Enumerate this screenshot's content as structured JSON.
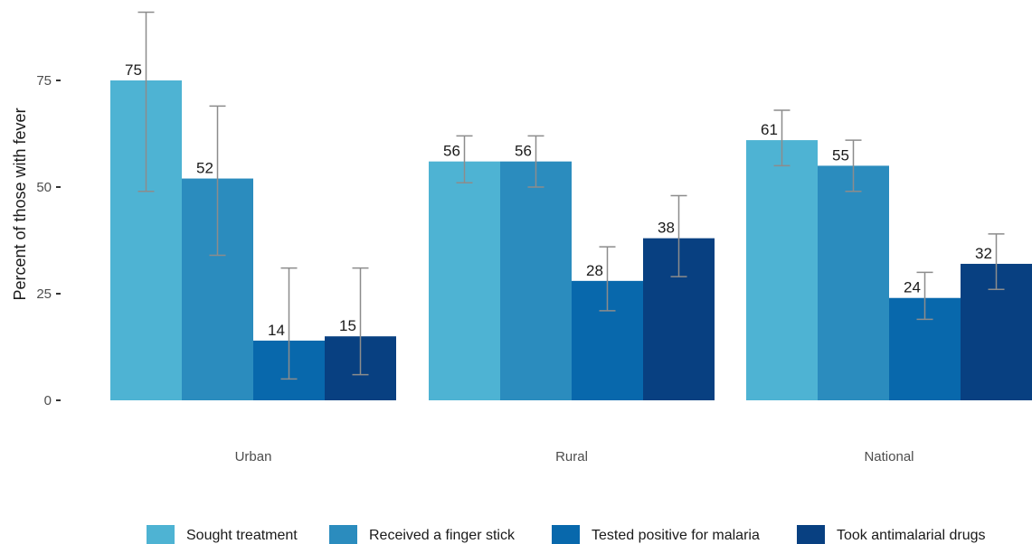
{
  "chart_data": {
    "type": "bar",
    "title": "",
    "xlabel": "",
    "ylabel": "Percent of those with fever",
    "ylim": [
      0,
      90
    ],
    "yticks": [
      0,
      25,
      50,
      75
    ],
    "categories": [
      "Urban",
      "Rural",
      "National"
    ],
    "grid": false,
    "legend_position": "bottom",
    "series": [
      {
        "name": "Sought treatment",
        "color": "#4eb3d3",
        "values": [
          75,
          56,
          61
        ],
        "labels": [
          "75",
          "56",
          "61"
        ],
        "ci_low": [
          49,
          51,
          55
        ],
        "ci_high": [
          91,
          62,
          68
        ]
      },
      {
        "name": "Received a finger stick",
        "color": "#2b8cbe",
        "values": [
          52,
          56,
          55
        ],
        "labels": [
          "52",
          "56",
          "55"
        ],
        "ci_low": [
          34,
          50,
          49
        ],
        "ci_high": [
          69,
          62,
          61
        ]
      },
      {
        "name": "Tested positive for malaria",
        "color": "#0868ac",
        "values": [
          14,
          28,
          24
        ],
        "labels": [
          "14",
          "28",
          "24"
        ],
        "ci_low": [
          5,
          21,
          19
        ],
        "ci_high": [
          31,
          36,
          30
        ]
      },
      {
        "name": "Took antimalarial drugs",
        "color": "#084081",
        "values": [
          15,
          38,
          32
        ],
        "labels": [
          "15",
          "38",
          "32"
        ],
        "ci_low": [
          6,
          29,
          26
        ],
        "ci_high": [
          31,
          48,
          39
        ]
      }
    ]
  }
}
